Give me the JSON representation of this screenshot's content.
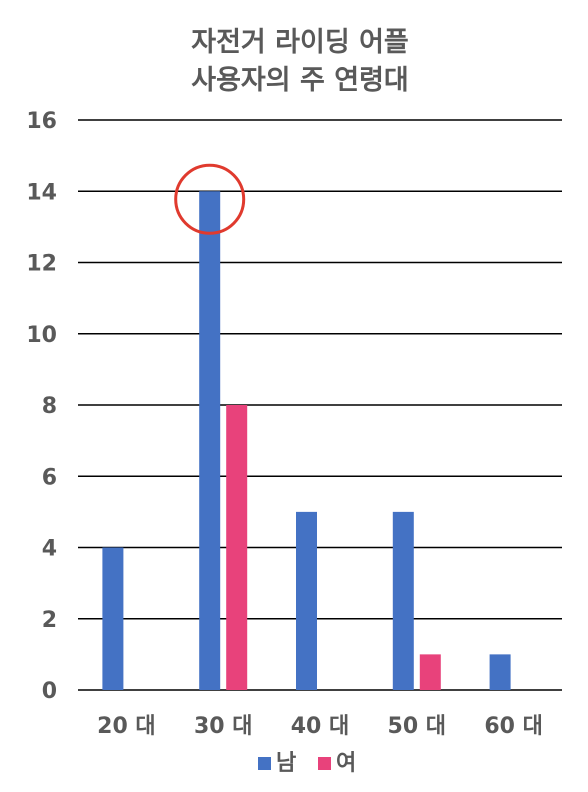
{
  "chart_data": {
    "type": "bar",
    "title_lines": [
      "자전거 라이딩 어플",
      "사용자의 주 연령대"
    ],
    "categories": [
      "20 대",
      "30 대",
      "40 대",
      "50 대",
      "60 대"
    ],
    "series": [
      {
        "name": "남",
        "values": [
          4,
          14,
          5,
          5,
          1
        ],
        "color": "#4472C4"
      },
      {
        "name": "여",
        "values": [
          0,
          8,
          0,
          1,
          0
        ],
        "color": "#E8427B"
      }
    ],
    "ylim": [
      0,
      16
    ],
    "yticks": [
      0,
      2,
      4,
      6,
      8,
      10,
      12,
      14,
      16
    ],
    "grid": true,
    "legend_position": "bottom",
    "annotation": {
      "type": "circle",
      "target": "30 대 남 bar top",
      "color": "#E03A2E"
    }
  }
}
